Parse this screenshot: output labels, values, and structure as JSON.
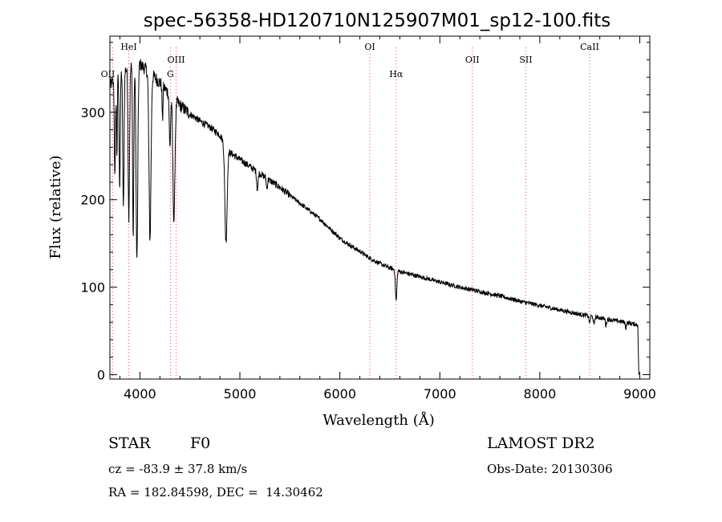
{
  "chart_data": {
    "type": "line",
    "title": "spec-56358-HD120710N125907M01_sp12-100.fits",
    "xlabel": "Wavelength (Å)",
    "ylabel": "Flux (relative)",
    "xlim": [
      3700,
      9100
    ],
    "ylim": [
      -5,
      387
    ],
    "xticks": [
      4000,
      5000,
      6000,
      7000,
      8000,
      9000
    ],
    "yticks": [
      0,
      100,
      200,
      300
    ],
    "grid": false,
    "continuum": [
      [
        3700,
        330
      ],
      [
        3800,
        345
      ],
      [
        3900,
        352
      ],
      [
        4000,
        355
      ],
      [
        4100,
        345
      ],
      [
        4200,
        334
      ],
      [
        4300,
        320
      ],
      [
        4400,
        308
      ],
      [
        4500,
        298
      ],
      [
        4600,
        290
      ],
      [
        4700,
        283
      ],
      [
        4800,
        274
      ],
      [
        4900,
        254
      ],
      [
        5000,
        246
      ],
      [
        5100,
        238
      ],
      [
        5200,
        230
      ],
      [
        5300,
        222
      ],
      [
        5400,
        214
      ],
      [
        5500,
        205
      ],
      [
        5600,
        196
      ],
      [
        5700,
        187
      ],
      [
        5800,
        178
      ],
      [
        5900,
        167
      ],
      [
        6000,
        156
      ],
      [
        6100,
        148
      ],
      [
        6200,
        141
      ],
      [
        6300,
        133
      ],
      [
        6400,
        127
      ],
      [
        6500,
        122
      ],
      [
        6600,
        118
      ],
      [
        6800,
        112
      ],
      [
        7000,
        106
      ],
      [
        7200,
        100
      ],
      [
        7400,
        95
      ],
      [
        7600,
        90
      ],
      [
        7800,
        84
      ],
      [
        8000,
        79
      ],
      [
        8200,
        74
      ],
      [
        8400,
        69
      ],
      [
        8600,
        65
      ],
      [
        8800,
        61
      ],
      [
        8980,
        57
      ]
    ],
    "absorption_lines": [
      {
        "x": 3750,
        "depth": 110,
        "width": 8
      },
      {
        "x": 3770,
        "depth": 90,
        "width": 6
      },
      {
        "x": 3798,
        "depth": 130,
        "width": 8
      },
      {
        "x": 3835,
        "depth": 160,
        "width": 9
      },
      {
        "x": 3889,
        "depth": 170,
        "width": 10
      },
      {
        "x": 3933,
        "depth": 200,
        "width": 8
      },
      {
        "x": 3970,
        "depth": 225,
        "width": 12
      },
      {
        "x": 4101,
        "depth": 190,
        "width": 14
      },
      {
        "x": 4226,
        "depth": 40,
        "width": 6
      },
      {
        "x": 4300,
        "depth": 60,
        "width": 9
      },
      {
        "x": 4340,
        "depth": 140,
        "width": 14
      },
      {
        "x": 4861,
        "depth": 110,
        "width": 16
      },
      {
        "x": 5175,
        "depth": 20,
        "width": 10
      },
      {
        "x": 5270,
        "depth": 12,
        "width": 8
      },
      {
        "x": 6563,
        "depth": 35,
        "width": 10
      },
      {
        "x": 8498,
        "depth": 8,
        "width": 8
      },
      {
        "x": 8542,
        "depth": 10,
        "width": 8
      },
      {
        "x": 8662,
        "depth": 8,
        "width": 8
      },
      {
        "x": 8860,
        "depth": 6,
        "width": 8
      }
    ],
    "noise_amplitude": 2.5,
    "final_drop": {
      "x": 8990,
      "y": 0
    },
    "line_markers": [
      {
        "label": "OII",
        "x": 3727,
        "row": 2,
        "align": "right"
      },
      {
        "label": "HeI",
        "x": 3889,
        "row": 0,
        "align": "center"
      },
      {
        "label": "OIII",
        "x": 4363,
        "row": 1,
        "align": "center"
      },
      {
        "label": "G",
        "x": 4305,
        "row": 2,
        "align": "center"
      },
      {
        "label": "OI",
        "x": 6300,
        "row": 0,
        "align": "center"
      },
      {
        "label": "Hα",
        "x": 6563,
        "row": 2,
        "align": "center"
      },
      {
        "label": "OII",
        "x": 7325,
        "row": 1,
        "align": "center"
      },
      {
        "label": "SII",
        "x": 7860,
        "row": 1,
        "align": "center"
      },
      {
        "label": "CaII",
        "x": 8498,
        "row": 0,
        "align": "center"
      }
    ],
    "marker_lines_x": [
      3727,
      3889,
      4305,
      4363,
      6300,
      6563,
      7325,
      7860,
      8498
    ],
    "colors": {
      "spectrum": "#000000",
      "marker_line": "#e05050",
      "axes": "#000000"
    }
  },
  "info": {
    "class_label": "STAR",
    "subclass": "F0",
    "survey": "LAMOST DR2",
    "cz": "cz = -83.9 ± 37.8 km/s",
    "obs_date": "Obs-Date: 20130306",
    "coords": "RA = 182.84598, DEC =  14.30462"
  }
}
